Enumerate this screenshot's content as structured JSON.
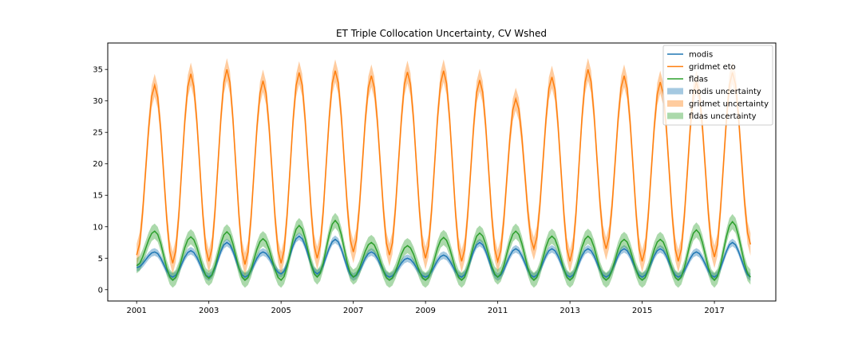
{
  "chart_data": {
    "type": "line",
    "title": "ET Triple Collocation Uncertainty, CV Wshed",
    "xlabel": "",
    "ylabel": "",
    "x_domain": [
      "2000-03-01",
      "2018-10-01"
    ],
    "xlim": [
      2000.2,
      2018.7
    ],
    "ylim": [
      -1.8,
      39.2
    ],
    "x_ticks": [
      "2001",
      "2003",
      "2005",
      "2007",
      "2009",
      "2011",
      "2013",
      "2015",
      "2017"
    ],
    "y_ticks": [
      "0",
      "5",
      "10",
      "15",
      "20",
      "25",
      "30",
      "35"
    ],
    "grid": false,
    "legend_position": "top-right",
    "legend": {
      "entries": [
        {
          "label": "modis",
          "kind": "line",
          "color": "#1f77b4"
        },
        {
          "label": "gridmet eto",
          "kind": "line",
          "color": "#ff7f0e"
        },
        {
          "label": "fldas",
          "kind": "line",
          "color": "#2ca02c"
        },
        {
          "label": "modis uncertainty",
          "kind": "band",
          "color": "#1f77b4"
        },
        {
          "label": "gridmet uncertainty",
          "kind": "band",
          "color": "#ff7f0e"
        },
        {
          "label": "fldas uncertainty",
          "kind": "band",
          "color": "#2ca02c"
        }
      ]
    },
    "series": [
      {
        "name": "modis",
        "color": "#1f77b4",
        "x_start": "2001-01",
        "x_end": "2018-01",
        "frequency": "monthly",
        "band_halfwidth": 0.6,
        "annual_min_month": 1,
        "annual_max_month": 7,
        "annual_peaks": [
          6.0,
          6.2,
          7.5,
          6.0,
          8.5,
          8.0,
          6.0,
          5.0,
          5.5,
          7.5,
          6.5,
          6.5,
          6.5,
          6.5,
          6.5,
          6.0,
          7.5
        ],
        "annual_troughs": [
          3.5,
          2.0,
          2.0,
          2.0,
          2.5,
          2.5,
          2.0,
          2.0,
          2.0,
          2.0,
          2.0,
          2.0,
          2.0,
          2.0,
          2.0,
          2.0,
          2.0,
          2.0
        ]
      },
      {
        "name": "gridmet eto",
        "color": "#ff7f0e",
        "x_start": "2001-01",
        "x_end": "2018-01",
        "frequency": "monthly",
        "band_halfwidth": 1.8,
        "annual_min_month": 1,
        "annual_max_month": 7,
        "annual_peaks": [
          32.5,
          34.3,
          35.0,
          33.2,
          34.5,
          34.8,
          34.0,
          34.6,
          34.8,
          33.3,
          30.3,
          33.8,
          35.0,
          34.0,
          33.0,
          33.0,
          34.5
        ],
        "annual_troughs": [
          5.5,
          4.2,
          4.5,
          4.0,
          4.2,
          5.0,
          6.0,
          5.5,
          5.0,
          4.5,
          4.5,
          6.5,
          4.5,
          6.5,
          4.5,
          4.5,
          5.2,
          7.2
        ]
      },
      {
        "name": "fldas",
        "color": "#2ca02c",
        "x_start": "2001-01",
        "x_end": "2018-01",
        "frequency": "monthly",
        "band_halfwidth": 1.2,
        "annual_min_month": 1,
        "annual_max_month": 7,
        "annual_peaks": [
          9.3,
          8.4,
          9.2,
          8.1,
          10.2,
          11.0,
          7.5,
          7.0,
          8.3,
          9.0,
          9.3,
          8.5,
          8.5,
          8.0,
          8.0,
          9.5,
          10.8
        ],
        "annual_troughs": [
          3.8,
          1.5,
          1.8,
          1.5,
          1.5,
          2.0,
          2.0,
          1.5,
          1.5,
          1.5,
          2.0,
          1.5,
          1.5,
          1.5,
          1.5,
          1.5,
          1.5,
          2.0
        ]
      }
    ]
  }
}
